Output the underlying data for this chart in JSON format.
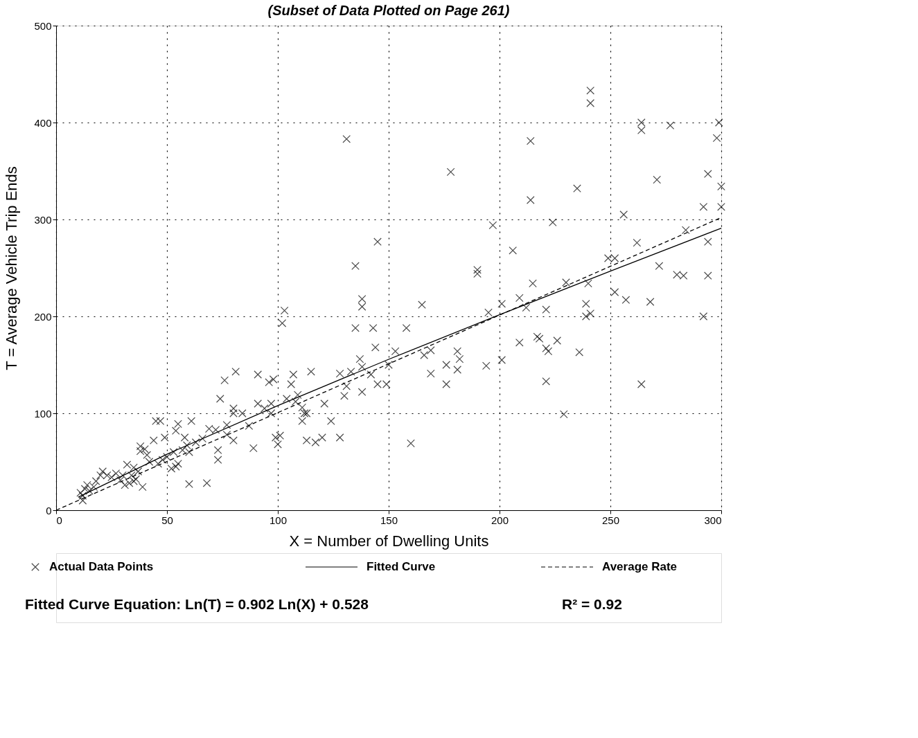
{
  "chart_data": {
    "type": "scatter",
    "title": "(Subset of Data Plotted on Page 261)",
    "xlabel": "X = Number of Dwelling Units",
    "ylabel": "T = Average Vehicle Trip Ends",
    "xlim": [
      0,
      300
    ],
    "ylim": [
      0,
      500
    ],
    "xticks": [
      0,
      50,
      100,
      150,
      200,
      250,
      300
    ],
    "yticks": [
      0,
      100,
      200,
      300,
      400,
      500
    ],
    "grid": true,
    "legend": "bottom",
    "series": [
      {
        "name": "Actual Data Points",
        "marker": "cross",
        "color": "#000000",
        "x": [
          241,
          241,
          131,
          214,
          264,
          264,
          277,
          299,
          298,
          178,
          294,
          235,
          271,
          300,
          214,
          256,
          292,
          300,
          197,
          224,
          284,
          145,
          262,
          294,
          206,
          249,
          252,
          135,
          190,
          190,
          240,
          230,
          215,
          138,
          138,
          252,
          209,
          268,
          257,
          239,
          212,
          201,
          195,
          221,
          165,
          103,
          102,
          294,
          280,
          283,
          272,
          292,
          241,
          239,
          135,
          143,
          158,
          217,
          218,
          209,
          226,
          201,
          194,
          221,
          222,
          236,
          181,
          182,
          181,
          144,
          169,
          166,
          153,
          137,
          138,
          142,
          138,
          133,
          115,
          169,
          176,
          176,
          221,
          264,
          229,
          160,
          149,
          145,
          150,
          81,
          76,
          74,
          91,
          96,
          98,
          107,
          106,
          128,
          131,
          130,
          128,
          124,
          121,
          120,
          117,
          113,
          112,
          111,
          108,
          109,
          111,
          113,
          104,
          101,
          100,
          99,
          97,
          97,
          91,
          94,
          89,
          87,
          84,
          80,
          80,
          80,
          77,
          77,
          73,
          73,
          72,
          69,
          68,
          60,
          61,
          57,
          59,
          58,
          54,
          55,
          54,
          52,
          49,
          47,
          45,
          44,
          41,
          40,
          38,
          38,
          37,
          39,
          35,
          34,
          33,
          32,
          30,
          29,
          27,
          23,
          21,
          20,
          18,
          17,
          15,
          13,
          12,
          12,
          11,
          14,
          42,
          46,
          48,
          50,
          53,
          55,
          60,
          63,
          66,
          35,
          36,
          31,
          25
        ],
        "values": [
          433,
          420,
          383,
          381,
          400,
          392,
          397,
          400,
          384,
          349,
          347,
          332,
          341,
          334,
          320,
          305,
          313,
          313,
          294,
          297,
          289,
          277,
          276,
          277,
          268,
          260,
          260,
          252,
          248,
          244,
          234,
          235,
          234,
          218,
          210,
          225,
          219,
          215,
          217,
          213,
          209,
          213,
          204,
          207,
          212,
          206,
          193,
          242,
          243,
          242,
          252,
          200,
          203,
          200,
          188,
          188,
          188,
          179,
          177,
          173,
          175,
          155,
          149,
          167,
          164,
          163,
          164,
          156,
          145,
          168,
          165,
          160,
          164,
          156,
          148,
          140,
          122,
          143,
          143,
          141,
          150,
          130,
          133,
          130,
          99,
          69,
          130,
          130,
          150,
          143,
          134,
          115,
          140,
          132,
          135,
          140,
          130,
          141,
          128,
          118,
          75,
          92,
          110,
          75,
          70,
          72,
          100,
          92,
          112,
          119,
          106,
          100,
          115,
          77,
          68,
          75,
          100,
          110,
          110,
          105,
          64,
          87,
          100,
          105,
          100,
          72,
          88,
          78,
          62,
          52,
          83,
          84,
          28,
          27,
          92,
          62,
          67,
          75,
          82,
          89,
          45,
          43,
          75,
          92,
          92,
          72,
          57,
          63,
          61,
          66,
          40,
          24,
          44,
          36,
          28,
          47,
          36,
          31,
          38,
          36,
          40,
          36,
          30,
          24,
          20,
          22,
          15,
          10,
          18,
          26,
          50,
          48,
          52,
          55,
          60,
          48,
          60,
          70,
          74,
          30,
          32,
          26,
          34
        ]
      },
      {
        "name": "Fitted Curve",
        "type": "line",
        "line_style": "solid",
        "color": "#000000",
        "x": [
          10,
          50,
          100,
          150,
          200,
          250,
          300
        ],
        "values": [
          13.5,
          57.8,
          108,
          155.7,
          201.7,
          246.7,
          291
        ]
      },
      {
        "name": "Average Rate",
        "type": "line",
        "line_style": "dashed",
        "color": "#000000",
        "x": [
          0,
          300
        ],
        "values": [
          0,
          302
        ]
      }
    ],
    "annotations": [
      "Fitted Curve Equation:  Ln(T) = 0.902 Ln(X) + 0.528",
      "R² = 0.92"
    ]
  }
}
